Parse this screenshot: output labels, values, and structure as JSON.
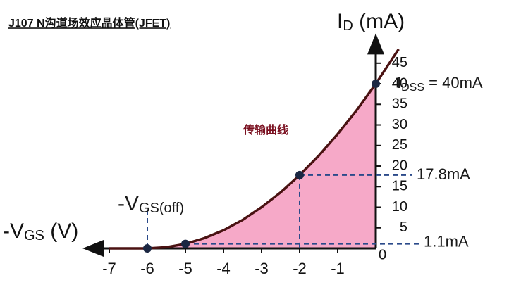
{
  "chart_data": {
    "type": "line",
    "title": "J107 N沟道场效应晶体管(JFET)",
    "curve_label": "传输曲线",
    "x_label": [
      "-V",
      "GS",
      " (V)"
    ],
    "y_label": [
      "I",
      "D",
      " (mA)"
    ],
    "origin_label": "0",
    "x": [
      -7,
      -6,
      -5.5,
      -5,
      -4.5,
      -4,
      -3.5,
      -3,
      -2.5,
      -2,
      -1.5,
      -1,
      -0.5,
      0,
      0.6
    ],
    "series": [
      {
        "name": "ID",
        "color": "#4a1212",
        "values": [
          0,
          0,
          0.28,
          1.1,
          2.5,
          4.4,
          6.9,
          10,
          13.6,
          17.8,
          22.5,
          27.8,
          33.6,
          40,
          48.4
        ]
      }
    ],
    "fill_color": "#f6a9c8",
    "points": {
      "x": [
        -6,
        -5,
        -2,
        0
      ],
      "y": [
        0,
        1.1,
        17.8,
        40
      ],
      "color": "#1b2742"
    },
    "annotations": [
      {
        "parts": [
          "-V",
          "GS(off)"
        ],
        "x": -6
      },
      {
        "parts": [
          "I",
          "DSS",
          " = 40mA"
        ],
        "y": 40
      },
      {
        "parts": [
          "17.8mA"
        ],
        "y": 17.8
      },
      {
        "parts": [
          "1.1mA"
        ],
        "y": 1.1
      }
    ],
    "xlim": [
      -7.5,
      0.6
    ],
    "ylim": [
      0,
      49
    ],
    "xticks": [
      -7,
      -6,
      -5,
      -4,
      -3,
      -2,
      -1
    ],
    "yticks": [
      5,
      10,
      15,
      20,
      25,
      30,
      35,
      40,
      45
    ]
  }
}
